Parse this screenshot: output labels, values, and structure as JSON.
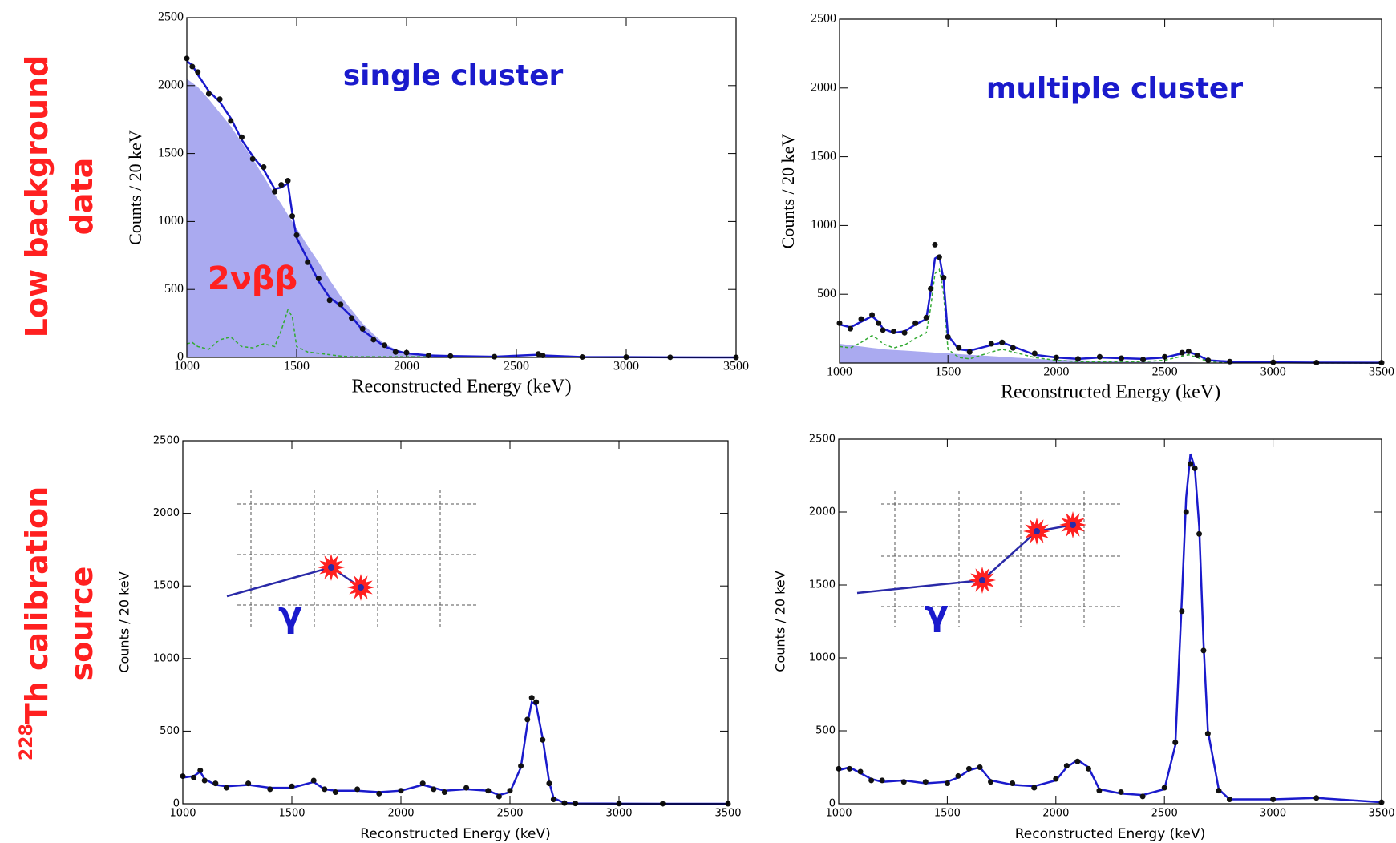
{
  "row_labels": [
    {
      "lines": [
        "Low background",
        "data"
      ]
    },
    {
      "sup": "228",
      "lines": [
        "Th calibration",
        "source"
      ]
    }
  ],
  "chart_data": [
    {
      "type": "line",
      "ylabel": "Counts / 20 keV",
      "xlabel": "Reconstructed Energy (keV)",
      "annotations": [
        "single cluster",
        "2νββ"
      ],
      "xlim": [
        1000,
        3500
      ],
      "ylim": [
        0,
        2500
      ],
      "xticks": [
        1000,
        1500,
        2000,
        2500,
        3000,
        3500
      ],
      "yticks": [
        0,
        500,
        1000,
        1500,
        2000,
        2500
      ],
      "x": [
        1000,
        1025,
        1050,
        1100,
        1150,
        1200,
        1250,
        1300,
        1350,
        1400,
        1430,
        1460,
        1480,
        1500,
        1550,
        1600,
        1650,
        1700,
        1750,
        1800,
        1850,
        1900,
        1950,
        2000,
        2100,
        2200,
        2400,
        2600,
        2620,
        2800,
        3000,
        3200,
        3500
      ],
      "series": [
        {
          "style": "area",
          "color": "#aaaaf0",
          "values": [
            2050,
            2020,
            1990,
            1900,
            1800,
            1700,
            1580,
            1460,
            1330,
            1200,
            1130,
            1050,
            1000,
            950,
            820,
            700,
            570,
            450,
            350,
            250,
            170,
            100,
            60,
            30,
            10,
            5,
            0,
            0,
            0,
            0,
            0,
            0,
            0
          ]
        },
        {
          "style": "dashed",
          "color": "#33aa33",
          "values": [
            100,
            110,
            80,
            60,
            130,
            150,
            80,
            70,
            100,
            80,
            200,
            350,
            300,
            80,
            40,
            30,
            20,
            10,
            5,
            5,
            5,
            5,
            5,
            5,
            5,
            5,
            5,
            20,
            15,
            3,
            2,
            1,
            0
          ]
        },
        {
          "style": "line",
          "color": "#1a1acc",
          "values": [
            2180,
            2150,
            2080,
            1960,
            1880,
            1760,
            1600,
            1480,
            1380,
            1240,
            1250,
            1280,
            1060,
            880,
            720,
            560,
            440,
            380,
            300,
            200,
            140,
            80,
            50,
            30,
            15,
            10,
            5,
            20,
            15,
            3,
            2,
            1,
            0
          ]
        },
        {
          "style": "points",
          "color": "#111111",
          "values": [
            2200,
            2140,
            2100,
            1940,
            1900,
            1740,
            1620,
            1460,
            1400,
            1220,
            1270,
            1300,
            1040,
            900,
            700,
            580,
            420,
            390,
            290,
            210,
            130,
            90,
            40,
            35,
            15,
            10,
            5,
            25,
            15,
            3,
            2,
            1,
            0
          ]
        }
      ]
    },
    {
      "type": "line",
      "ylabel": "Counts / 20 keV",
      "xlabel": "Reconstructed Energy (keV)",
      "annotations": [
        "multiple cluster"
      ],
      "xlim": [
        1000,
        3500
      ],
      "ylim": [
        0,
        2500
      ],
      "xticks": [
        1000,
        1500,
        2000,
        2500,
        3000,
        3500
      ],
      "yticks": [
        500,
        1000,
        1500,
        2000,
        2500
      ],
      "x": [
        1000,
        1050,
        1100,
        1150,
        1180,
        1200,
        1250,
        1300,
        1350,
        1400,
        1420,
        1440,
        1460,
        1480,
        1500,
        1550,
        1600,
        1700,
        1750,
        1800,
        1900,
        2000,
        2100,
        2200,
        2300,
        2400,
        2500,
        2580,
        2610,
        2650,
        2700,
        2800,
        3000,
        3200,
        3500
      ],
      "series": [
        {
          "style": "area",
          "color": "#aaaaf0",
          "values": [
            140,
            130,
            120,
            110,
            105,
            100,
            95,
            90,
            85,
            80,
            78,
            76,
            74,
            72,
            70,
            65,
            60,
            50,
            45,
            40,
            30,
            25,
            20,
            15,
            10,
            8,
            6,
            5,
            5,
            4,
            3,
            2,
            1,
            0,
            0
          ]
        },
        {
          "style": "dashed",
          "color": "#33aa33",
          "values": [
            120,
            110,
            150,
            200,
            170,
            140,
            110,
            130,
            180,
            220,
            400,
            650,
            680,
            500,
            100,
            40,
            30,
            80,
            100,
            80,
            40,
            20,
            10,
            10,
            10,
            10,
            20,
            50,
            60,
            40,
            10,
            5,
            2,
            1,
            0
          ]
        },
        {
          "style": "line",
          "color": "#1a1acc",
          "values": [
            280,
            260,
            300,
            340,
            300,
            250,
            220,
            230,
            280,
            320,
            520,
            760,
            780,
            600,
            200,
            100,
            90,
            130,
            150,
            120,
            60,
            40,
            30,
            40,
            35,
            30,
            40,
            70,
            80,
            60,
            20,
            10,
            5,
            3,
            2
          ]
        },
        {
          "style": "points",
          "color": "#111111",
          "values": [
            290,
            250,
            320,
            350,
            290,
            240,
            230,
            220,
            290,
            330,
            540,
            860,
            770,
            620,
            190,
            110,
            80,
            140,
            150,
            110,
            70,
            40,
            30,
            45,
            35,
            25,
            45,
            75,
            85,
            55,
            20,
            10,
            5,
            3,
            2
          ]
        }
      ]
    },
    {
      "type": "line",
      "ylabel": "Counts / 20 keV",
      "xlabel": "Reconstructed Energy (keV)",
      "annotations": [
        "γ"
      ],
      "xlim": [
        1000,
        3500
      ],
      "ylim": [
        0,
        2500
      ],
      "xticks": [
        1000,
        1500,
        2000,
        2500,
        3000,
        3500
      ],
      "yticks": [
        0,
        500,
        1000,
        1500,
        2000,
        2500
      ],
      "x": [
        1000,
        1050,
        1080,
        1100,
        1150,
        1200,
        1300,
        1400,
        1500,
        1600,
        1650,
        1700,
        1800,
        1900,
        2000,
        2100,
        2150,
        2200,
        2300,
        2400,
        2450,
        2500,
        2550,
        2580,
        2600,
        2620,
        2650,
        2680,
        2700,
        2750,
        2800,
        3000,
        3200,
        3500
      ],
      "series": [
        {
          "style": "line",
          "color": "#1a1acc",
          "values": [
            180,
            190,
            220,
            170,
            130,
            120,
            130,
            110,
            110,
            150,
            100,
            90,
            90,
            80,
            90,
            130,
            110,
            90,
            100,
            90,
            60,
            80,
            250,
            550,
            700,
            680,
            450,
            150,
            40,
            5,
            2,
            1,
            0,
            0
          ]
        },
        {
          "style": "points",
          "color": "#111111",
          "values": [
            190,
            180,
            230,
            160,
            140,
            110,
            140,
            100,
            120,
            160,
            100,
            80,
            100,
            70,
            90,
            140,
            100,
            80,
            110,
            90,
            50,
            90,
            260,
            580,
            730,
            700,
            440,
            140,
            30,
            5,
            2,
            1,
            0,
            0
          ]
        }
      ]
    },
    {
      "type": "line",
      "ylabel": "Counts / 20 keV",
      "xlabel": "Reconstructed Energy (keV)",
      "annotations": [
        "γ"
      ],
      "xlim": [
        1000,
        3500
      ],
      "ylim": [
        0,
        2500
      ],
      "xticks": [
        1000,
        1500,
        2000,
        2500,
        3000,
        3500
      ],
      "yticks": [
        0,
        500,
        1000,
        1500,
        2000,
        2500
      ],
      "x": [
        1000,
        1050,
        1100,
        1150,
        1200,
        1300,
        1400,
        1500,
        1550,
        1600,
        1650,
        1700,
        1800,
        1900,
        2000,
        2050,
        2100,
        2150,
        2200,
        2300,
        2400,
        2500,
        2550,
        2580,
        2600,
        2620,
        2640,
        2660,
        2680,
        2700,
        2750,
        2800,
        3000,
        3200,
        3500
      ],
      "series": [
        {
          "style": "line",
          "color": "#1a1acc",
          "values": [
            230,
            250,
            210,
            170,
            150,
            160,
            140,
            150,
            180,
            230,
            250,
            160,
            130,
            120,
            160,
            250,
            300,
            250,
            100,
            70,
            60,
            100,
            400,
            1400,
            2100,
            2400,
            2300,
            1900,
            1100,
            500,
            100,
            30,
            30,
            40,
            10
          ]
        },
        {
          "style": "points",
          "color": "#111111",
          "values": [
            240,
            240,
            220,
            160,
            160,
            150,
            150,
            140,
            190,
            240,
            250,
            150,
            140,
            110,
            170,
            260,
            290,
            240,
            90,
            80,
            50,
            110,
            420,
            1320,
            2000,
            2330,
            2300,
            1850,
            1050,
            480,
            90,
            30,
            30,
            40,
            10
          ]
        }
      ]
    }
  ]
}
